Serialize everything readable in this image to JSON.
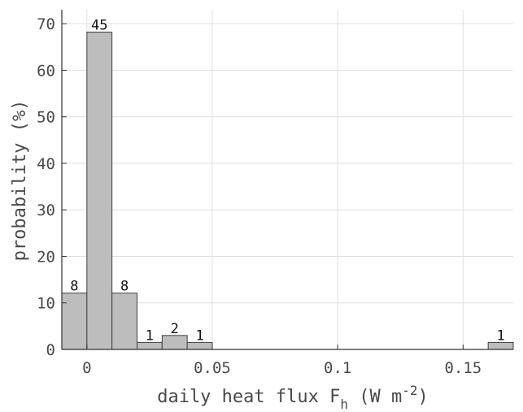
{
  "chart_data": {
    "type": "bar",
    "title": "",
    "xlabel": "daily heat flux",
    "xlabel_symbol": "F",
    "xlabel_subscript": "h",
    "xlabel_units_open": " (W m",
    "xlabel_units_exp": "-2",
    "xlabel_units_close": ")",
    "ylabel": "probability (%)",
    "xlim": [
      -0.01,
      0.17
    ],
    "ylim": [
      0,
      73
    ],
    "bin_width": 0.01,
    "xticks": [
      0,
      0.05,
      0.1,
      0.15
    ],
    "xtick_labels": [
      "0",
      "0.05",
      "0.1",
      "0.15"
    ],
    "yticks": [
      0,
      10,
      20,
      30,
      40,
      50,
      60,
      70
    ],
    "ytick_labels": [
      "0",
      "10",
      "20",
      "30",
      "40",
      "50",
      "60",
      "70"
    ],
    "bins": [
      {
        "x": -0.005,
        "value": 12.1,
        "count": "8"
      },
      {
        "x": 0.005,
        "value": 68.2,
        "count": "45"
      },
      {
        "x": 0.015,
        "value": 12.1,
        "count": "8"
      },
      {
        "x": 0.025,
        "value": 1.5,
        "count": "1"
      },
      {
        "x": 0.035,
        "value": 3.0,
        "count": "2"
      },
      {
        "x": 0.045,
        "value": 1.5,
        "count": "1"
      },
      {
        "x": 0.165,
        "value": 1.5,
        "count": "1"
      }
    ],
    "grid": true,
    "bar_color": "#bdbdbd",
    "edge_color": "#404040"
  }
}
